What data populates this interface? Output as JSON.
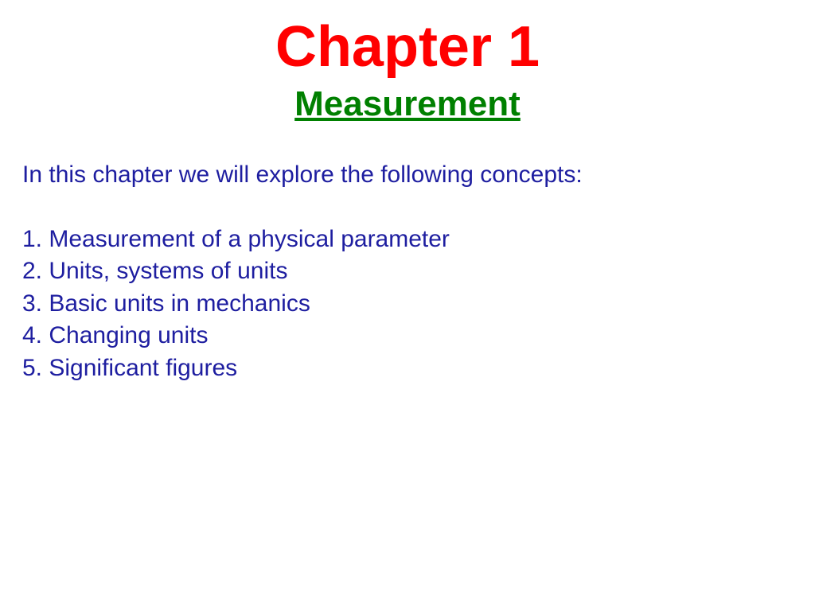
{
  "slide": {
    "chapter_title": "Chapter 1",
    "subtitle": "Measurement",
    "intro_text": "In this chapter we will explore the following concepts:",
    "concepts": [
      "1. Measurement of a physical parameter",
      "2. Units, systems of units",
      "3. Basic units in mechanics",
      "4. Changing units",
      "5. Significant figures"
    ]
  },
  "styling": {
    "chapter_title_color": "#ff0000",
    "chapter_title_fontsize": 72,
    "chapter_title_weight": "bold",
    "subtitle_color": "#008000",
    "subtitle_fontsize": 44,
    "subtitle_weight": "bold",
    "subtitle_underline": true,
    "body_text_color": "#1e1ea0",
    "body_text_fontsize": 30,
    "background_color": "#ffffff",
    "font_family": "Arial",
    "line_height": 1.35
  }
}
